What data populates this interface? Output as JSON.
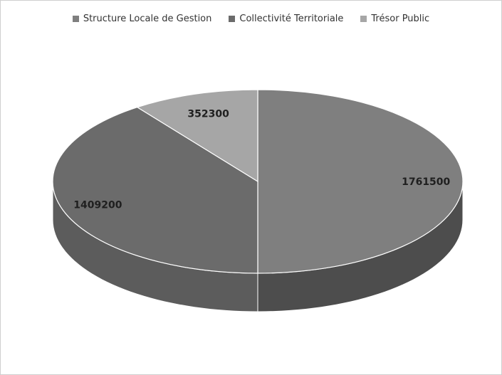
{
  "chart_data": {
    "type": "pie",
    "style": "3d",
    "legend_position": "top",
    "categories": [
      "Structure Locale de Gestion",
      "Collectivité Territoriale",
      "Trésor Public"
    ],
    "values": [
      1761500,
      1409200,
      352300
    ],
    "data_labels": [
      "1761500",
      "1409200",
      "352300"
    ],
    "colors": [
      "#7f7f7f",
      "#6b6b6b",
      "#a6a6a6"
    ],
    "side_colors": [
      "#4d4d4d",
      "#5c5c5c",
      "#7a7a7a"
    ]
  }
}
